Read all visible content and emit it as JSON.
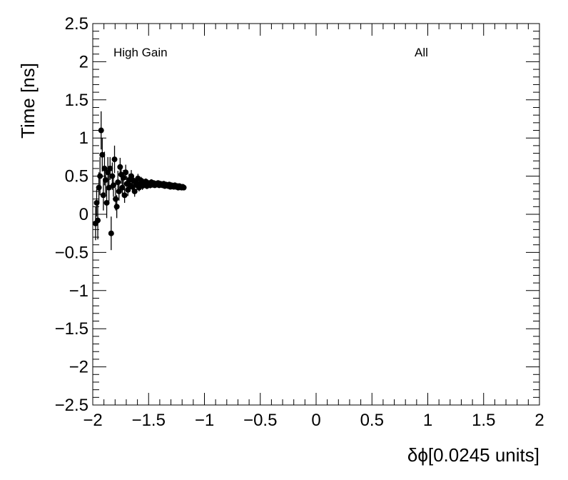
{
  "chart_data": {
    "type": "scatter",
    "xlabel": "δϕ[0.0245 units]",
    "ylabel": "Time [ns]",
    "xlim": [
      -2,
      2
    ],
    "ylim": [
      -2.5,
      2.5
    ],
    "x_ticks": [
      "−2",
      "−1.5",
      "−1",
      "−0.5",
      "0",
      "0.5",
      "1",
      "1.5",
      "2"
    ],
    "y_ticks": [
      "−2.5",
      "−2",
      "−1.5",
      "−1",
      "−0.5",
      "0",
      "0.5",
      "1",
      "1.5",
      "2",
      "2.5"
    ],
    "annotations": {
      "left": "High Gain",
      "right": "All"
    },
    "grid": false,
    "marker_color": "#000000",
    "series": [
      {
        "points": [
          [
            -1.975,
            -0.12,
            0.22
          ],
          [
            -1.965,
            0.15,
            0.18
          ],
          [
            -1.955,
            -0.08,
            0.25
          ],
          [
            -1.945,
            0.35,
            0.2
          ],
          [
            -1.935,
            0.5,
            0.25
          ],
          [
            -1.925,
            1.1,
            0.25
          ],
          [
            -1.915,
            0.78,
            0.22
          ],
          [
            -1.905,
            0.25,
            0.2
          ],
          [
            -1.895,
            0.6,
            0.22
          ],
          [
            -1.885,
            0.45,
            0.18
          ],
          [
            -1.875,
            0.15,
            0.2
          ],
          [
            -1.865,
            0.55,
            0.2
          ],
          [
            -1.855,
            0.35,
            0.18
          ],
          [
            -1.845,
            0.6,
            0.15
          ],
          [
            -1.835,
            -0.25,
            0.22
          ],
          [
            -1.825,
            0.5,
            0.18
          ],
          [
            -1.815,
            0.38,
            0.15
          ],
          [
            -1.805,
            0.72,
            0.18
          ],
          [
            -1.795,
            0.2,
            0.15
          ],
          [
            -1.785,
            0.1,
            0.15
          ],
          [
            -1.775,
            0.42,
            0.15
          ],
          [
            -1.765,
            0.3,
            0.12
          ],
          [
            -1.755,
            0.62,
            0.12
          ],
          [
            -1.745,
            0.52,
            0.12
          ],
          [
            -1.735,
            0.35,
            0.12
          ],
          [
            -1.725,
            0.48,
            0.1
          ],
          [
            -1.715,
            0.25,
            0.1
          ],
          [
            -1.705,
            0.55,
            0.1
          ],
          [
            -1.695,
            0.4,
            0.1
          ],
          [
            -1.685,
            0.32,
            0.08
          ],
          [
            -1.675,
            0.45,
            0.08
          ],
          [
            -1.665,
            0.38,
            0.08
          ],
          [
            -1.655,
            0.5,
            0.08
          ],
          [
            -1.645,
            0.36,
            0.07
          ],
          [
            -1.635,
            0.44,
            0.07
          ],
          [
            -1.625,
            0.3,
            0.07
          ],
          [
            -1.615,
            0.42,
            0.06
          ],
          [
            -1.605,
            0.38,
            0.06
          ],
          [
            -1.595,
            0.47,
            0.06
          ],
          [
            -1.585,
            0.35,
            0.05
          ],
          [
            -1.575,
            0.4,
            0.05
          ],
          [
            -1.565,
            0.44,
            0.05
          ],
          [
            -1.555,
            0.37,
            0.05
          ],
          [
            -1.545,
            0.41,
            0.05
          ],
          [
            -1.535,
            0.39,
            0.04
          ],
          [
            -1.525,
            0.43,
            0.04
          ],
          [
            -1.515,
            0.37,
            0.04
          ],
          [
            -1.505,
            0.41,
            0.04
          ],
          [
            -1.495,
            0.4,
            0.04
          ],
          [
            -1.485,
            0.38,
            0.04
          ],
          [
            -1.475,
            0.42,
            0.04
          ],
          [
            -1.465,
            0.39,
            0.04
          ],
          [
            -1.455,
            0.41,
            0.03
          ],
          [
            -1.445,
            0.38,
            0.03
          ],
          [
            -1.435,
            0.4,
            0.03
          ],
          [
            -1.425,
            0.39,
            0.03
          ],
          [
            -1.415,
            0.41,
            0.03
          ],
          [
            -1.405,
            0.38,
            0.03
          ],
          [
            -1.395,
            0.4,
            0.03
          ],
          [
            -1.385,
            0.39,
            0.03
          ],
          [
            -1.375,
            0.38,
            0.03
          ],
          [
            -1.365,
            0.4,
            0.03
          ],
          [
            -1.355,
            0.37,
            0.03
          ],
          [
            -1.345,
            0.39,
            0.03
          ],
          [
            -1.335,
            0.38,
            0.03
          ],
          [
            -1.325,
            0.37,
            0.03
          ],
          [
            -1.315,
            0.39,
            0.03
          ],
          [
            -1.305,
            0.36,
            0.03
          ],
          [
            -1.295,
            0.38,
            0.03
          ],
          [
            -1.285,
            0.37,
            0.03
          ],
          [
            -1.275,
            0.36,
            0.02
          ],
          [
            -1.265,
            0.38,
            0.02
          ],
          [
            -1.255,
            0.36,
            0.02
          ],
          [
            -1.245,
            0.37,
            0.02
          ],
          [
            -1.235,
            0.35,
            0.02
          ],
          [
            -1.225,
            0.37,
            0.02
          ],
          [
            -1.215,
            0.36,
            0.02
          ],
          [
            -1.205,
            0.35,
            0.02
          ],
          [
            -1.195,
            0.36,
            0.02
          ],
          [
            -1.185,
            0.35,
            0.02
          ]
        ]
      }
    ]
  }
}
